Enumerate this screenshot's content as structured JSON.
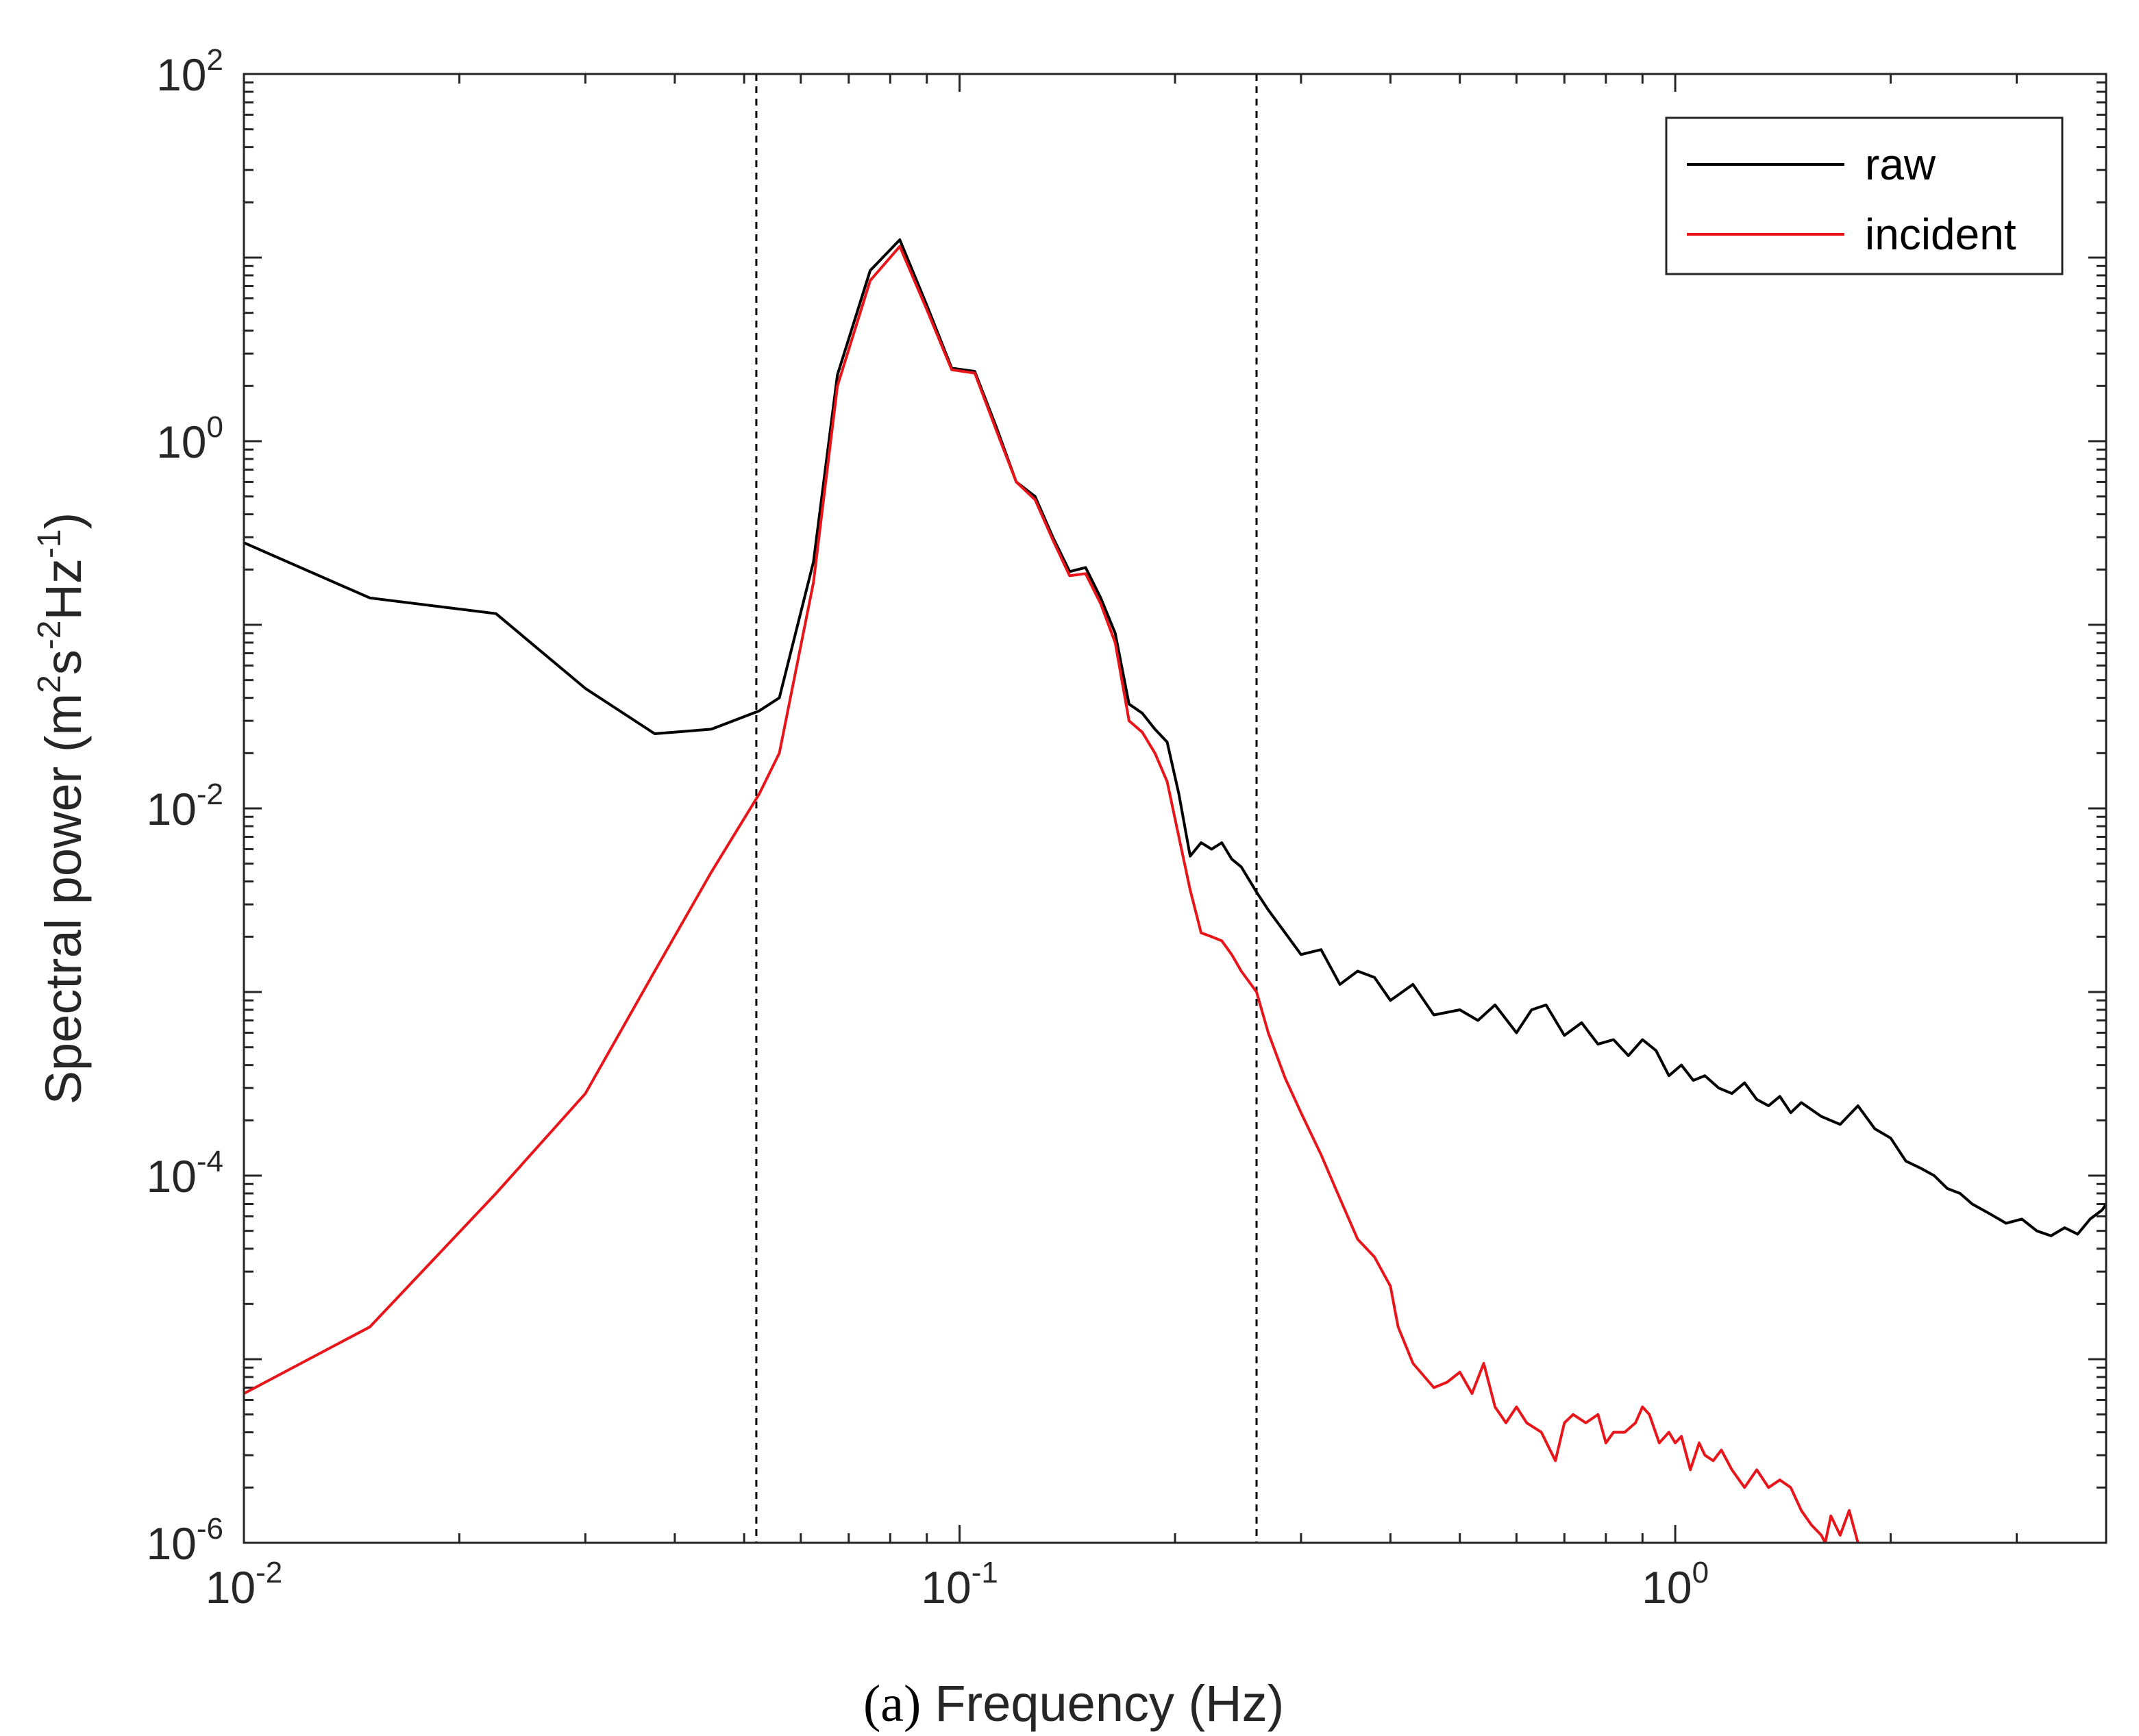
{
  "chart_data": {
    "type": "line",
    "title": "",
    "panel_label": "(a)",
    "xlabel": "Frequency (Hz)",
    "ylabel_parts": {
      "base": "Spectral power (m",
      "sup1": "2",
      "mid1": "s",
      "sup2": "-2",
      "mid2": "Hz",
      "sup3": "-1",
      "end": ")"
    },
    "xscale": "log",
    "yscale": "log",
    "xlim": [
      0.01,
      4.0
    ],
    "ylim": [
      1e-06,
      100
    ],
    "x_ticks": [
      {
        "value": 0.01,
        "base": "10",
        "exp": "-2"
      },
      {
        "value": 0.1,
        "base": "10",
        "exp": "-1"
      },
      {
        "value": 1,
        "base": "10",
        "exp": "0"
      }
    ],
    "y_ticks": [
      {
        "value": 1e-06,
        "base": "10",
        "exp": "-6"
      },
      {
        "value": 0.0001,
        "base": "10",
        "exp": "-4"
      },
      {
        "value": 0.01,
        "base": "10",
        "exp": "-2"
      },
      {
        "value": 1,
        "base": "10",
        "exp": "0"
      },
      {
        "value": 100,
        "base": "10",
        "exp": "2"
      }
    ],
    "vlines": [
      0.052,
      0.26
    ],
    "legend": {
      "placement": "top-right"
    },
    "series": [
      {
        "name": "raw",
        "color": "#000000",
        "points": [
          [
            0.01,
            0.28
          ],
          [
            0.015,
            0.14
          ],
          [
            0.0225,
            0.115
          ],
          [
            0.03,
            0.045
          ],
          [
            0.0375,
            0.0255
          ],
          [
            0.045,
            0.027
          ],
          [
            0.0525,
            0.034
          ],
          [
            0.056,
            0.04
          ],
          [
            0.0625,
            0.22
          ],
          [
            0.0675,
            2.3
          ],
          [
            0.075,
            8.5
          ],
          [
            0.0825,
            12.5
          ],
          [
            0.09,
            5.5
          ],
          [
            0.0975,
            2.5
          ],
          [
            0.105,
            2.4
          ],
          [
            0.1125,
            1.2
          ],
          [
            0.12,
            0.6
          ],
          [
            0.1275,
            0.5
          ],
          [
            0.135,
            0.3
          ],
          [
            0.1425,
            0.195
          ],
          [
            0.15,
            0.205
          ],
          [
            0.1575,
            0.14
          ],
          [
            0.165,
            0.09
          ],
          [
            0.1725,
            0.037
          ],
          [
            0.18,
            0.033
          ],
          [
            0.1875,
            0.027
          ],
          [
            0.195,
            0.023
          ],
          [
            0.2025,
            0.012
          ],
          [
            0.21,
            0.0055
          ],
          [
            0.2175,
            0.0065
          ],
          [
            0.225,
            0.006
          ],
          [
            0.2325,
            0.0065
          ],
          [
            0.24,
            0.0053
          ],
          [
            0.2475,
            0.0048
          ],
          [
            0.26,
            0.0035
          ],
          [
            0.27,
            0.0028
          ],
          [
            0.285,
            0.0021
          ],
          [
            0.3,
            0.0016
          ],
          [
            0.32,
            0.0017
          ],
          [
            0.34,
            0.0011
          ],
          [
            0.36,
            0.0013
          ],
          [
            0.38,
            0.0012
          ],
          [
            0.4,
            0.0009
          ],
          [
            0.43,
            0.0011
          ],
          [
            0.46,
            0.00075
          ],
          [
            0.5,
            0.0008
          ],
          [
            0.53,
            0.0007
          ],
          [
            0.56,
            0.00085
          ],
          [
            0.6,
            0.0006
          ],
          [
            0.63,
            0.0008
          ],
          [
            0.66,
            0.00085
          ],
          [
            0.7,
            0.00058
          ],
          [
            0.74,
            0.00068
          ],
          [
            0.78,
            0.00052
          ],
          [
            0.82,
            0.00055
          ],
          [
            0.86,
            0.00045
          ],
          [
            0.9,
            0.00055
          ],
          [
            0.94,
            0.00048
          ],
          [
            0.98,
            0.00035
          ],
          [
            1.02,
            0.0004
          ],
          [
            1.06,
            0.00033
          ],
          [
            1.1,
            0.00035
          ],
          [
            1.15,
            0.0003
          ],
          [
            1.2,
            0.00028
          ],
          [
            1.25,
            0.00032
          ],
          [
            1.3,
            0.00026
          ],
          [
            1.35,
            0.00024
          ],
          [
            1.4,
            0.00027
          ],
          [
            1.45,
            0.00022
          ],
          [
            1.5,
            0.00025
          ],
          [
            1.6,
            0.00021
          ],
          [
            1.7,
            0.00019
          ],
          [
            1.8,
            0.00024
          ],
          [
            1.9,
            0.00018
          ],
          [
            2.0,
            0.00016
          ],
          [
            2.1,
            0.00012
          ],
          [
            2.2,
            0.00011
          ],
          [
            2.3,
            0.0001
          ],
          [
            2.4,
            8.5e-05
          ],
          [
            2.5,
            8e-05
          ],
          [
            2.6,
            7e-05
          ],
          [
            2.75,
            6.2e-05
          ],
          [
            2.9,
            5.5e-05
          ],
          [
            3.05,
            5.8e-05
          ],
          [
            3.2,
            5e-05
          ],
          [
            3.35,
            4.7e-05
          ],
          [
            3.5,
            5.2e-05
          ],
          [
            3.65,
            4.8e-05
          ],
          [
            3.8,
            5.8e-05
          ],
          [
            3.95,
            6.5e-05
          ],
          [
            4.0,
            7e-05
          ]
        ]
      },
      {
        "name": "incident",
        "color": "#e8161b",
        "points": [
          [
            0.01,
            6.5e-06
          ],
          [
            0.015,
            1.5e-05
          ],
          [
            0.0225,
            8e-05
          ],
          [
            0.03,
            0.00028
          ],
          [
            0.0375,
            0.0013
          ],
          [
            0.045,
            0.0045
          ],
          [
            0.0525,
            0.012
          ],
          [
            0.056,
            0.02
          ],
          [
            0.0625,
            0.17
          ],
          [
            0.0675,
            2.0
          ],
          [
            0.075,
            7.5
          ],
          [
            0.0825,
            11.5
          ],
          [
            0.09,
            5.2
          ],
          [
            0.0975,
            2.45
          ],
          [
            0.105,
            2.35
          ],
          [
            0.1125,
            1.15
          ],
          [
            0.12,
            0.6
          ],
          [
            0.1275,
            0.48
          ],
          [
            0.135,
            0.29
          ],
          [
            0.1425,
            0.185
          ],
          [
            0.15,
            0.19
          ],
          [
            0.1575,
            0.13
          ],
          [
            0.165,
            0.08
          ],
          [
            0.1725,
            0.03
          ],
          [
            0.18,
            0.026
          ],
          [
            0.1875,
            0.02
          ],
          [
            0.195,
            0.014
          ],
          [
            0.2025,
            0.007
          ],
          [
            0.21,
            0.0036
          ],
          [
            0.2175,
            0.0021
          ],
          [
            0.225,
            0.002
          ],
          [
            0.2325,
            0.0019
          ],
          [
            0.24,
            0.0016
          ],
          [
            0.2475,
            0.0013
          ],
          [
            0.26,
            0.001
          ],
          [
            0.27,
            0.0006
          ],
          [
            0.285,
            0.00034
          ],
          [
            0.3,
            0.00022
          ],
          [
            0.32,
            0.00013
          ],
          [
            0.34,
            7.5e-05
          ],
          [
            0.36,
            4.5e-05
          ],
          [
            0.38,
            3.6e-05
          ],
          [
            0.4,
            2.5e-05
          ],
          [
            0.41,
            1.5e-05
          ],
          [
            0.43,
            9.5e-06
          ],
          [
            0.46,
            7e-06
          ],
          [
            0.48,
            7.5e-06
          ],
          [
            0.5,
            8.5e-06
          ],
          [
            0.52,
            6.5e-06
          ],
          [
            0.54,
            9.5e-06
          ],
          [
            0.56,
            5.5e-06
          ],
          [
            0.58,
            4.5e-06
          ],
          [
            0.6,
            5.5e-06
          ],
          [
            0.62,
            4.5e-06
          ],
          [
            0.65,
            4e-06
          ],
          [
            0.68,
            2.8e-06
          ],
          [
            0.7,
            4.5e-06
          ],
          [
            0.72,
            5e-06
          ],
          [
            0.75,
            4.5e-06
          ],
          [
            0.78,
            5e-06
          ],
          [
            0.8,
            3.5e-06
          ],
          [
            0.82,
            4e-06
          ],
          [
            0.85,
            4e-06
          ],
          [
            0.88,
            4.5e-06
          ],
          [
            0.9,
            5.5e-06
          ],
          [
            0.92,
            5e-06
          ],
          [
            0.95,
            3.5e-06
          ],
          [
            0.98,
            4e-06
          ],
          [
            1.0,
            3.5e-06
          ],
          [
            1.02,
            3.8e-06
          ],
          [
            1.05,
            2.5e-06
          ],
          [
            1.08,
            3.5e-06
          ],
          [
            1.1,
            3e-06
          ],
          [
            1.13,
            2.8e-06
          ],
          [
            1.16,
            3.2e-06
          ],
          [
            1.2,
            2.5e-06
          ],
          [
            1.25,
            2e-06
          ],
          [
            1.3,
            2.5e-06
          ],
          [
            1.35,
            2e-06
          ],
          [
            1.4,
            2.2e-06
          ],
          [
            1.45,
            2e-06
          ],
          [
            1.5,
            1.5e-06
          ],
          [
            1.55,
            1.25e-06
          ],
          [
            1.6,
            1.1e-06
          ],
          [
            1.62,
            1e-06
          ],
          [
            1.65,
            1.4e-06
          ],
          [
            1.7,
            1.1e-06
          ],
          [
            1.75,
            1.5e-06
          ],
          [
            1.8,
            1e-06
          ]
        ]
      }
    ]
  }
}
